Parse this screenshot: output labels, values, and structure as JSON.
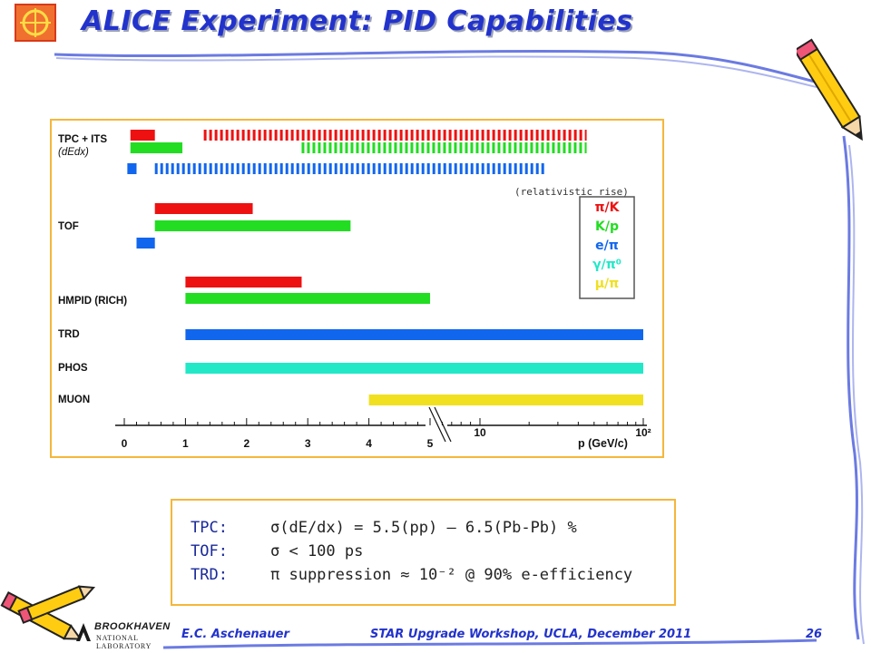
{
  "slide": {
    "title": "ALICE Experiment: PID Capabilities",
    "footer_author": "E.C. Aschenauer",
    "footer_event": "STAR Upgrade Workshop, UCLA, December 2011",
    "page_number": "26",
    "bnl_logo_main": "BROOKHAVEN",
    "bnl_logo_sub": "NATIONAL LABORATORY"
  },
  "notes": [
    {
      "key": "TPC:",
      "text": "σ(dE/dx) = 5.5(pp) – 6.5(Pb-Pb) %"
    },
    {
      "key": "TOF:",
      "text": "σ < 100 ps"
    },
    {
      "key": "TRD:",
      "text": "π suppression ≈ 10⁻² @ 90% e-efficiency"
    }
  ],
  "colors": {
    "title": "#2233cc",
    "frame_border": "#f5b73a",
    "pi_K": "#ee1111",
    "K_p": "#22dd22",
    "e_pi": "#1166ee",
    "gamma_pi0": "#22e8c8",
    "mu_pi": "#f0e020"
  },
  "chart_data": {
    "type": "bar",
    "orientation": "horizontal-range",
    "xlabel": "p (GeV/c)",
    "x_ticks_linear": [
      "0",
      "1",
      "2",
      "3",
      "4",
      "5"
    ],
    "x_ticks_log": [
      "10",
      "10²"
    ],
    "annotation": "(relativistic rise)",
    "legend": [
      {
        "label": "π/K",
        "color": "#ee1111"
      },
      {
        "label": "K/p",
        "color": "#22dd22"
      },
      {
        "label": "e/π",
        "color": "#1166ee"
      },
      {
        "label": "γ/π⁰",
        "color": "#22e8c8"
      },
      {
        "label": "μ/π",
        "color": "#f0e020"
      }
    ],
    "detectors": [
      {
        "name": "TPC + ITS",
        "sub": "(dEdx)",
        "bars": [
          {
            "species": "π/K",
            "color": "#ee1111",
            "segments": [
              {
                "from": 0.1,
                "to": 0.5,
                "style": "solid"
              },
              {
                "from": 1.3,
                "to": 45,
                "style": "dashed"
              }
            ]
          },
          {
            "species": "K/p",
            "color": "#22dd22",
            "segments": [
              {
                "from": 0.1,
                "to": 0.95,
                "style": "solid"
              },
              {
                "from": 2.9,
                "to": 45,
                "style": "dashed"
              }
            ]
          },
          {
            "species": "e/π",
            "color": "#1166ee",
            "segments": [
              {
                "from": 0.05,
                "to": 0.2,
                "style": "solid"
              },
              {
                "from": 0.5,
                "to": 25,
                "style": "dashed"
              }
            ]
          }
        ]
      },
      {
        "name": "TOF",
        "sub": "",
        "bars": [
          {
            "species": "π/K",
            "color": "#ee1111",
            "segments": [
              {
                "from": 0.5,
                "to": 2.1,
                "style": "solid"
              }
            ]
          },
          {
            "species": "K/p",
            "color": "#22dd22",
            "segments": [
              {
                "from": 0.5,
                "to": 3.7,
                "style": "solid"
              }
            ]
          },
          {
            "species": "e/π",
            "color": "#1166ee",
            "segments": [
              {
                "from": 0.2,
                "to": 0.5,
                "style": "solid"
              }
            ]
          }
        ]
      },
      {
        "name": "HMPID (RICH)",
        "sub": "",
        "bars": [
          {
            "species": "π/K",
            "color": "#ee1111",
            "segments": [
              {
                "from": 1.0,
                "to": 2.9,
                "style": "solid"
              }
            ]
          },
          {
            "species": "K/p",
            "color": "#22dd22",
            "segments": [
              {
                "from": 1.0,
                "to": 5.0,
                "style": "solid"
              }
            ]
          }
        ]
      },
      {
        "name": "TRD",
        "sub": "",
        "bars": [
          {
            "species": "e/π",
            "color": "#1166ee",
            "segments": [
              {
                "from": 1.0,
                "to": 100,
                "style": "solid"
              }
            ]
          }
        ]
      },
      {
        "name": "PHOS",
        "sub": "",
        "bars": [
          {
            "species": "γ/π⁰",
            "color": "#22e8c8",
            "segments": [
              {
                "from": 1.0,
                "to": 100,
                "style": "solid"
              }
            ]
          }
        ]
      },
      {
        "name": "MUON",
        "sub": "",
        "bars": [
          {
            "species": "μ/π",
            "color": "#f0e020",
            "segments": [
              {
                "from": 4.0,
                "to": 100,
                "style": "solid"
              }
            ]
          }
        ]
      }
    ]
  }
}
